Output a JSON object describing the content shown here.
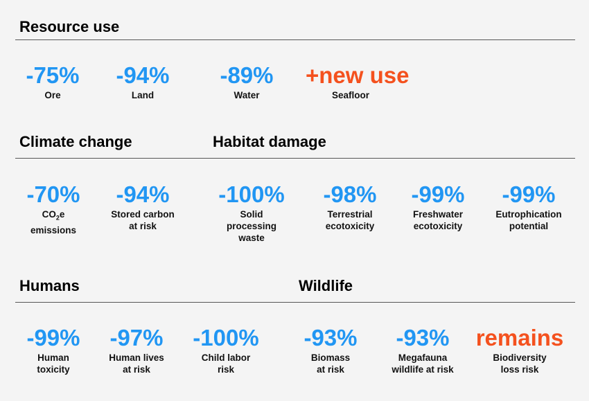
{
  "colors": {
    "blue": "#2196f3",
    "red": "#f4511e"
  },
  "headings": {
    "resource_use": "Resource use",
    "climate_change": "Climate change",
    "habitat_damage": "Habitat damage",
    "humans": "Humans",
    "wildlife": "Wildlife"
  },
  "stats": {
    "ore": {
      "value": "-75%",
      "label1": "Ore"
    },
    "land": {
      "value": "-94%",
      "label1": "Land"
    },
    "water": {
      "value": "-89%",
      "label1": "Water"
    },
    "seafloor": {
      "value": "+new use",
      "label1": "Seafloor"
    },
    "co2e": {
      "value": "-70%",
      "label1_prefix": "CO",
      "label1_sub": "2",
      "label1_suffix": "e",
      "label2": "emissions"
    },
    "stored_carbon": {
      "value": "-94%",
      "label1": "Stored carbon",
      "label2": "at risk"
    },
    "solid_waste": {
      "value": "-100%",
      "label1": "Solid",
      "label2": "processing",
      "label3": "waste"
    },
    "terrestrial": {
      "value": "-98%",
      "label1": "Terrestrial",
      "label2": "ecotoxicity"
    },
    "freshwater": {
      "value": "-99%",
      "label1": "Freshwater",
      "label2": "ecotoxicity"
    },
    "eutrophication": {
      "value": "-99%",
      "label1": "Eutrophication",
      "label2": "potential"
    },
    "human_toxicity": {
      "value": "-99%",
      "label1": "Human",
      "label2": "toxicity"
    },
    "human_lives": {
      "value": "-97%",
      "label1": "Human lives",
      "label2": "at risk"
    },
    "child_labor": {
      "value": "-100%",
      "label1": "Child labor",
      "label2": "risk"
    },
    "biomass": {
      "value": "-93%",
      "label1": "Biomass",
      "label2": "at risk"
    },
    "megafauna": {
      "value": "-93%",
      "label1": "Megafauna",
      "label2": "wildlife at risk"
    },
    "biodiversity": {
      "value": "remains",
      "label1": "Biodiversity",
      "label2": "loss risk"
    }
  }
}
